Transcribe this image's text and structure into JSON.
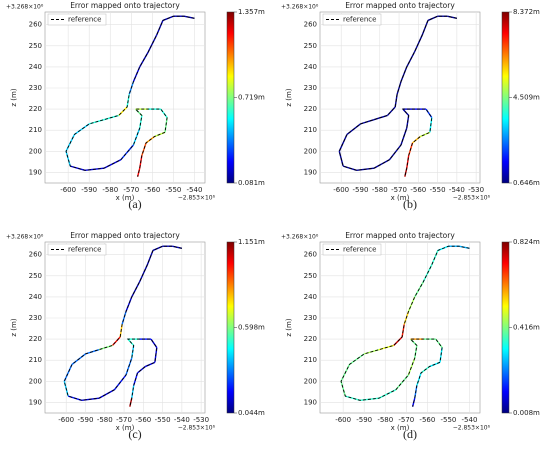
{
  "chart_data": [
    {
      "type": "line",
      "title": "Error mapped onto trajectory",
      "caption": "(a)",
      "x_label": "x (m)",
      "y_label": "z (m)",
      "x_offset": "−2.853×10⁶",
      "y_offset": "+3.268×10⁶",
      "xlim": [
        -611,
        -535
      ],
      "xticks": [
        -600,
        -590,
        -580,
        -570,
        -560,
        -550,
        -540
      ],
      "ylim": [
        185,
        266
      ],
      "yticks": [
        190,
        200,
        210,
        220,
        230,
        240,
        250,
        260
      ],
      "grid": true,
      "legend": "upper left",
      "series": [
        {
          "name": "reference",
          "color": "#000000",
          "dash": true,
          "x": [
            -540,
            -545,
            -550,
            -555,
            -558,
            -562,
            -566,
            -569,
            -571,
            -572,
            -576,
            -583,
            -590,
            -597,
            -601,
            -599,
            -592,
            -583,
            -575,
            -569,
            -566,
            -565,
            -568,
            -562,
            -556,
            -553,
            -554,
            -559,
            -563,
            -565,
            -566,
            -567
          ],
          "y": [
            263,
            264,
            264,
            262,
            255,
            247,
            240,
            233,
            227,
            221,
            217,
            215,
            213,
            208,
            200,
            193,
            191,
            192,
            196,
            203,
            211,
            217,
            220,
            220,
            220,
            216,
            209,
            207,
            204,
            198,
            192,
            188
          ]
        }
      ],
      "trajectory": {
        "errors": [
          0.15,
          0.15,
          0.15,
          0.15,
          0.15,
          0.15,
          0.2,
          0.4,
          0.6,
          0.9,
          0.6,
          0.6,
          0.5,
          0.5,
          0.5,
          0.2,
          0.2,
          0.2,
          0.3,
          0.5,
          0.6,
          0.7,
          0.8,
          0.6,
          0.6,
          0.7,
          0.8,
          1.0,
          1.1,
          1.2,
          1.2
        ]
      },
      "colorbar": {
        "lim": [
          0.081,
          1.357
        ],
        "ticks": [
          {
            "value": 0.081,
            "label": "0.081m"
          },
          {
            "value": 0.719,
            "label": "0.719m"
          },
          {
            "value": 1.357,
            "label": "1.357m"
          }
        ]
      }
    },
    {
      "type": "line",
      "title": "Error mapped onto trajectory",
      "caption": "(b)",
      "x_label": "x (m)",
      "y_label": "z (m)",
      "x_offset": "−2.853×10⁶",
      "y_offset": "+3.268×10⁶",
      "xlim": [
        -611,
        -528
      ],
      "xticks": [
        -600,
        -590,
        -580,
        -570,
        -560,
        -550,
        -540,
        -530
      ],
      "ylim": [
        185,
        266
      ],
      "yticks": [
        190,
        200,
        210,
        220,
        230,
        240,
        250,
        260
      ],
      "grid": true,
      "legend": "upper left",
      "series": [
        {
          "name": "reference",
          "color": "#000000",
          "dash": true,
          "x": [
            -540,
            -545,
            -550,
            -555,
            -558,
            -562,
            -566,
            -569,
            -571,
            -572,
            -576,
            -583,
            -590,
            -597,
            -601,
            -599,
            -592,
            -583,
            -575,
            -569,
            -566,
            -565,
            -568,
            -562,
            -556,
            -553,
            -554,
            -559,
            -563,
            -565,
            -566,
            -567
          ],
          "y": [
            263,
            264,
            264,
            262,
            255,
            247,
            240,
            233,
            227,
            221,
            217,
            215,
            213,
            208,
            200,
            193,
            191,
            192,
            196,
            203,
            211,
            217,
            220,
            220,
            220,
            216,
            209,
            207,
            204,
            198,
            192,
            188
          ]
        }
      ],
      "trajectory": {
        "errors": [
          0.8,
          0.8,
          0.8,
          0.8,
          0.8,
          0.8,
          0.8,
          0.8,
          0.8,
          0.9,
          0.9,
          0.9,
          0.9,
          0.9,
          0.9,
          0.9,
          0.9,
          0.9,
          0.9,
          0.9,
          1.0,
          1.0,
          1.2,
          1.5,
          2.0,
          3.5,
          5.0,
          6.0,
          7.0,
          7.5,
          8.0
        ]
      },
      "colorbar": {
        "lim": [
          0.646,
          8.372
        ],
        "ticks": [
          {
            "value": 0.646,
            "label": "0.646m"
          },
          {
            "value": 4.509,
            "label": "4.509m"
          },
          {
            "value": 8.372,
            "label": "8.372m"
          }
        ]
      }
    },
    {
      "type": "line",
      "title": "Error mapped onto trajectory",
      "caption": "(c)",
      "x_label": "x (m)",
      "y_label": "z (m)",
      "x_offset": "−2.853×10⁶",
      "y_offset": "+3.268×10⁶",
      "xlim": [
        -611,
        -528
      ],
      "xticks": [
        -600,
        -590,
        -580,
        -570,
        -560,
        -550,
        -540,
        -530
      ],
      "ylim": [
        185,
        266
      ],
      "yticks": [
        190,
        200,
        210,
        220,
        230,
        240,
        250,
        260
      ],
      "grid": true,
      "legend": "upper left",
      "series": [
        {
          "name": "reference",
          "color": "#000000",
          "dash": true,
          "x": [
            -540,
            -545,
            -550,
            -555,
            -558,
            -562,
            -566,
            -569,
            -571,
            -572,
            -576,
            -583,
            -590,
            -597,
            -601,
            -599,
            -592,
            -583,
            -575,
            -569,
            -566,
            -565,
            -568,
            -562,
            -556,
            -553,
            -554,
            -559,
            -563,
            -565,
            -566,
            -567
          ],
          "y": [
            263,
            264,
            264,
            262,
            255,
            247,
            240,
            233,
            227,
            221,
            217,
            215,
            213,
            208,
            200,
            193,
            191,
            192,
            196,
            203,
            211,
            217,
            220,
            220,
            220,
            216,
            209,
            207,
            204,
            198,
            192,
            188
          ]
        }
      ],
      "trajectory": {
        "errors": [
          0.1,
          0.1,
          0.1,
          0.1,
          0.1,
          0.1,
          0.15,
          0.3,
          0.8,
          1.0,
          0.6,
          0.3,
          0.3,
          0.3,
          0.4,
          0.2,
          0.15,
          0.15,
          0.2,
          0.3,
          0.4,
          0.5,
          0.5,
          0.2,
          0.15,
          0.15,
          0.15,
          0.15,
          0.2,
          0.4,
          1.1
        ]
      },
      "colorbar": {
        "lim": [
          0.044,
          1.151
        ],
        "ticks": [
          {
            "value": 0.044,
            "label": "0.044m"
          },
          {
            "value": 0.598,
            "label": "0.598m"
          },
          {
            "value": 1.151,
            "label": "1.151m"
          }
        ]
      }
    },
    {
      "type": "line",
      "title": "Error mapped onto trajectory",
      "caption": "(d)",
      "x_label": "x (m)",
      "y_label": "z (m)",
      "x_offset": "−2.853×10⁶",
      "y_offset": "+3.268×10⁶",
      "xlim": [
        -611,
        -535
      ],
      "xticks": [
        -600,
        -590,
        -580,
        -570,
        -560,
        -550,
        -540
      ],
      "ylim": [
        185,
        266
      ],
      "yticks": [
        190,
        200,
        210,
        220,
        230,
        240,
        250,
        260
      ],
      "grid": true,
      "legend": "upper left",
      "series": [
        {
          "name": "reference",
          "color": "#000000",
          "dash": true,
          "x": [
            -540,
            -545,
            -550,
            -555,
            -558,
            -562,
            -566,
            -569,
            -571,
            -572,
            -576,
            -583,
            -590,
            -597,
            -601,
            -599,
            -592,
            -583,
            -575,
            -569,
            -566,
            -565,
            -568,
            -562,
            -556,
            -553,
            -554,
            -559,
            -563,
            -565,
            -566,
            -567
          ],
          "y": [
            263,
            264,
            264,
            262,
            255,
            247,
            240,
            233,
            227,
            221,
            217,
            215,
            213,
            208,
            200,
            193,
            191,
            192,
            196,
            203,
            211,
            217,
            220,
            220,
            220,
            216,
            209,
            207,
            204,
            198,
            192,
            188
          ]
        }
      ],
      "trajectory": {
        "errors": [
          0.25,
          0.25,
          0.3,
          0.35,
          0.35,
          0.4,
          0.45,
          0.55,
          0.7,
          0.75,
          0.5,
          0.45,
          0.4,
          0.4,
          0.4,
          0.35,
          0.35,
          0.35,
          0.4,
          0.45,
          0.4,
          0.4,
          0.6,
          0.4,
          0.4,
          0.3,
          0.3,
          0.35,
          0.3,
          0.2,
          0.1
        ]
      },
      "colorbar": {
        "lim": [
          0.008,
          0.824
        ],
        "ticks": [
          {
            "value": 0.008,
            "label": "0.008m"
          },
          {
            "value": 0.416,
            "label": "0.416m"
          },
          {
            "value": 0.824,
            "label": "0.824m"
          }
        ]
      }
    }
  ]
}
